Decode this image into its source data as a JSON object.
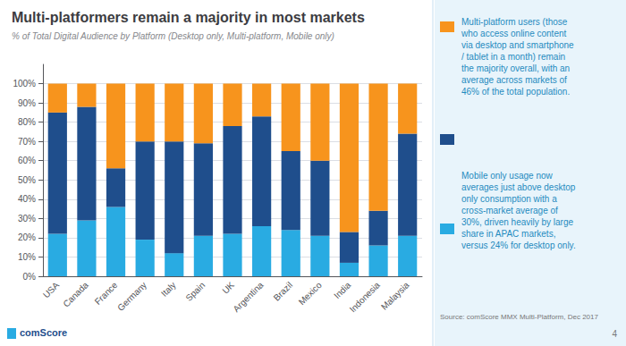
{
  "chart_data": {
    "type": "bar",
    "stacked": true,
    "title": "Multi-platformers remain a majority in most markets",
    "subtitle": "% of Total Digital Audience by Platform (Desktop only, Multi-platform, Mobile only)",
    "categories": [
      "USA",
      "Canada",
      "France",
      "Germany",
      "Italy",
      "Spain",
      "UK",
      "Argentina",
      "Brazil",
      "Mexico",
      "India",
      "Indonesia",
      "Malaysia"
    ],
    "series": [
      {
        "color": "#29ABE2",
        "values": [
          22,
          29,
          36,
          19,
          12,
          21,
          22,
          26,
          24,
          21,
          7,
          16,
          21
        ]
      },
      {
        "color": "#1F4E8C",
        "values": [
          63,
          59,
          20,
          51,
          58,
          48,
          56,
          57,
          41,
          39,
          16,
          18,
          53
        ]
      },
      {
        "color": "#F7941D",
        "values": [
          15,
          12,
          44,
          30,
          30,
          31,
          22,
          17,
          35,
          40,
          77,
          66,
          26
        ]
      }
    ],
    "ylim": [
      0,
      110
    ],
    "yticks": [
      {
        "value": 0,
        "label": "0%"
      },
      {
        "value": 10,
        "label": "10%"
      },
      {
        "value": 20,
        "label": "20%"
      },
      {
        "value": 30,
        "label": "30%"
      },
      {
        "value": 40,
        "label": "40%"
      },
      {
        "value": 50,
        "label": "50%"
      },
      {
        "value": 60,
        "label": "60%"
      },
      {
        "value": 70,
        "label": "70%"
      },
      {
        "value": 80,
        "label": "80%"
      },
      {
        "value": 90,
        "label": "90%"
      },
      {
        "value": 100,
        "label": "100%"
      }
    ],
    "grid": true,
    "annotations": [
      "Multi-platform users (those\nwho access online content\nvia desktop and smartphone\n/ tablet in a month) remain\nthe majority overall, with an\naverage across markets of\n46% of the total population.",
      "Mobile only usage now\naverages just above desktop\nonly consumption with a\ncross-market average of\n30%, driven heavily by large\nshare in APAC markets,\nversus 24% for desktop only.",
      "Source: comScore MMX Multi-Platform, Dec 2017",
      "comScore",
      "4"
    ]
  }
}
